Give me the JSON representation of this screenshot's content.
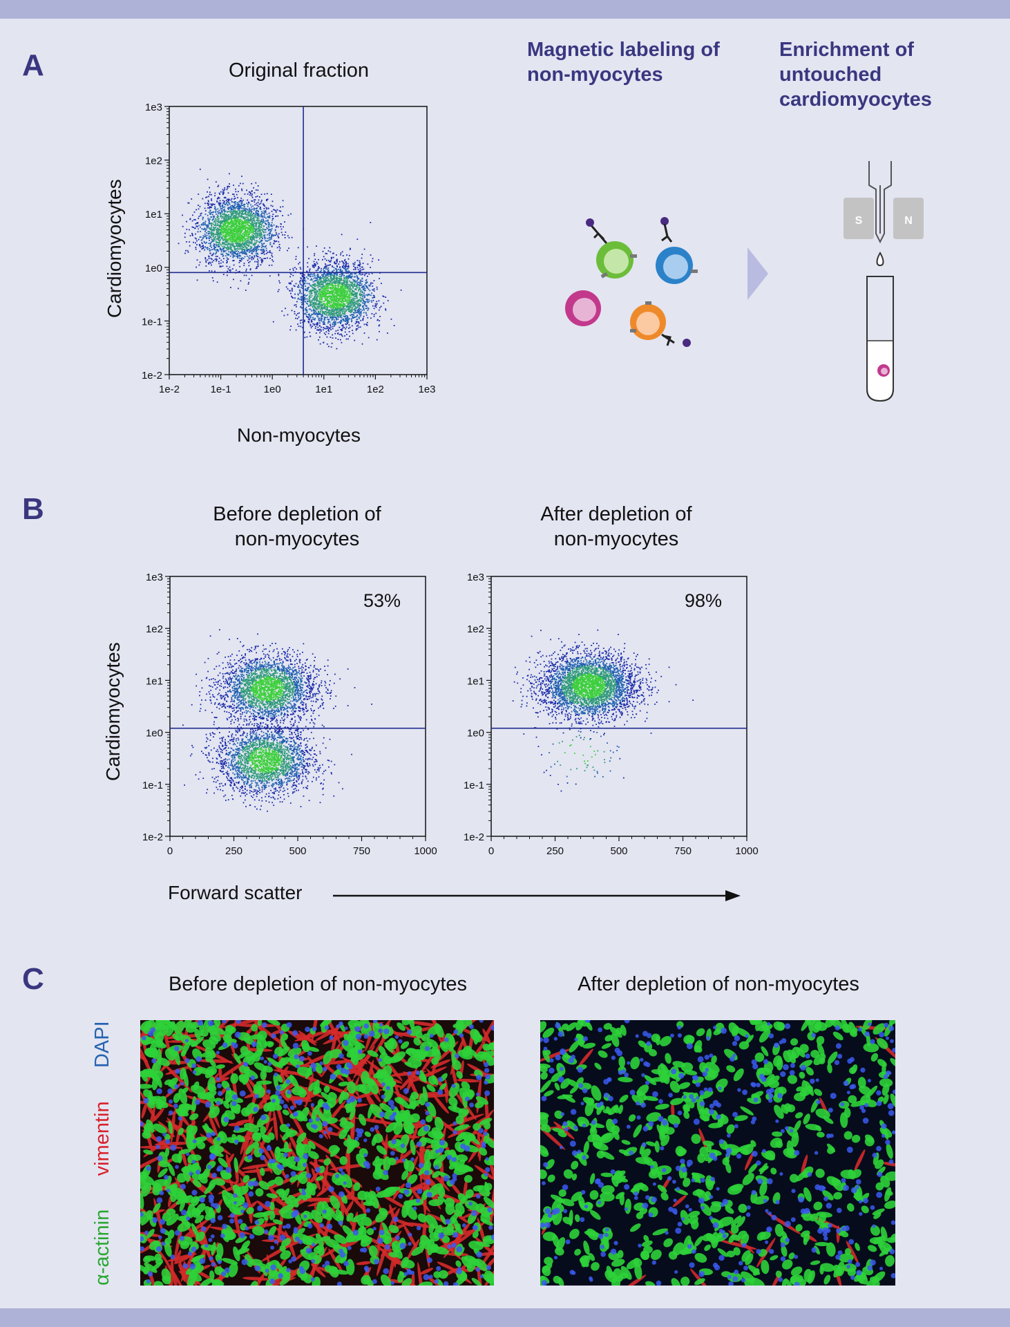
{
  "panels": {
    "a": "A",
    "b": "B",
    "c": "C"
  },
  "section_a": {
    "plot_title": "Original fraction",
    "y_label": "Cardiomyocytes",
    "x_label": "Non-myocytes",
    "step1_title": [
      "Magnetic labeling of",
      "non-myocytes"
    ],
    "step2_title": [
      "Enrichment of",
      "untouched",
      "cardiomyocytes"
    ],
    "magnet_left": "S",
    "magnet_right": "N"
  },
  "section_b": {
    "before_title": [
      "Before depletion of",
      "non-myocytes"
    ],
    "after_title": [
      "After depletion of",
      "non-myocytes"
    ],
    "y_label": "Cardiomyocytes",
    "x_label": "Forward scatter",
    "before_percent": "53%",
    "after_percent": "98%"
  },
  "section_c": {
    "before_title": "Before depletion of non-myocytes",
    "after_title": "After depletion of non-myocytes",
    "stain_labels": [
      {
        "text": "α-actinin",
        "color": "#2aa832"
      },
      {
        "text": "vimentin",
        "color": "#d8202a"
      },
      {
        "text": "DAPI",
        "color": "#2563b0"
      }
    ]
  },
  "colors": {
    "accent": "#3a3780",
    "line": "#1f2b8f",
    "density_low": "#1a2aa8",
    "density_high": "#3ccf3c"
  },
  "chart_data": [
    {
      "type": "scatter",
      "id": "original",
      "title": "Original fraction",
      "xlabel": "Non-myocytes",
      "ylabel": "Cardiomyocytes",
      "xscale": "log",
      "yscale": "log",
      "xticks": [
        "1e-2",
        "1e-1",
        "1e0",
        "1e1",
        "1e2",
        "1e3"
      ],
      "yticks": [
        "1e-2",
        "1e-1",
        "1e0",
        "1e1",
        "1e2",
        "1e3"
      ],
      "xlim": [
        0.01,
        1000
      ],
      "ylim": [
        0.01,
        1000
      ],
      "gate_x": 4,
      "gate_y": 0.8,
      "clusters": [
        {
          "label": "cardiomyocytes",
          "center_x": 0.2,
          "center_y": 5,
          "share": 0.5
        },
        {
          "label": "non-myocytes",
          "center_x": 16,
          "center_y": 0.3,
          "share": 0.5
        }
      ]
    },
    {
      "type": "scatter",
      "id": "before",
      "title": "Before depletion of non-myocytes",
      "xlabel": "Forward scatter",
      "ylabel": "Cardiomyocytes",
      "xscale": "linear",
      "yscale": "log",
      "xticks": [
        "0",
        "250",
        "500",
        "750",
        "1000"
      ],
      "yticks": [
        "1e-2",
        "1e-1",
        "1e0",
        "1e1",
        "1e2",
        "1e3"
      ],
      "xlim": [
        0,
        1000
      ],
      "ylim": [
        0.01,
        1000
      ],
      "gate_y": 1.2,
      "annotation": "53%",
      "clusters": [
        {
          "label": "cardiomyocytes",
          "center_x": 380,
          "center_y": 7,
          "share": 0.53
        },
        {
          "label": "non-myocytes",
          "center_x": 370,
          "center_y": 0.3,
          "share": 0.47
        }
      ]
    },
    {
      "type": "scatter",
      "id": "after",
      "title": "After depletion of non-myocytes",
      "xlabel": "Forward scatter",
      "ylabel": "Cardiomyocytes",
      "xscale": "linear",
      "yscale": "log",
      "xticks": [
        "0",
        "250",
        "500",
        "750",
        "1000"
      ],
      "yticks": [
        "1e-2",
        "1e-1",
        "1e0",
        "1e1",
        "1e2",
        "1e3"
      ],
      "xlim": [
        0,
        1000
      ],
      "ylim": [
        0.01,
        1000
      ],
      "gate_y": 1.2,
      "annotation": "98%",
      "clusters": [
        {
          "label": "cardiomyocytes",
          "center_x": 380,
          "center_y": 8,
          "share": 0.98
        },
        {
          "label": "non-myocytes",
          "center_x": 350,
          "center_y": 0.4,
          "share": 0.02
        }
      ]
    }
  ]
}
